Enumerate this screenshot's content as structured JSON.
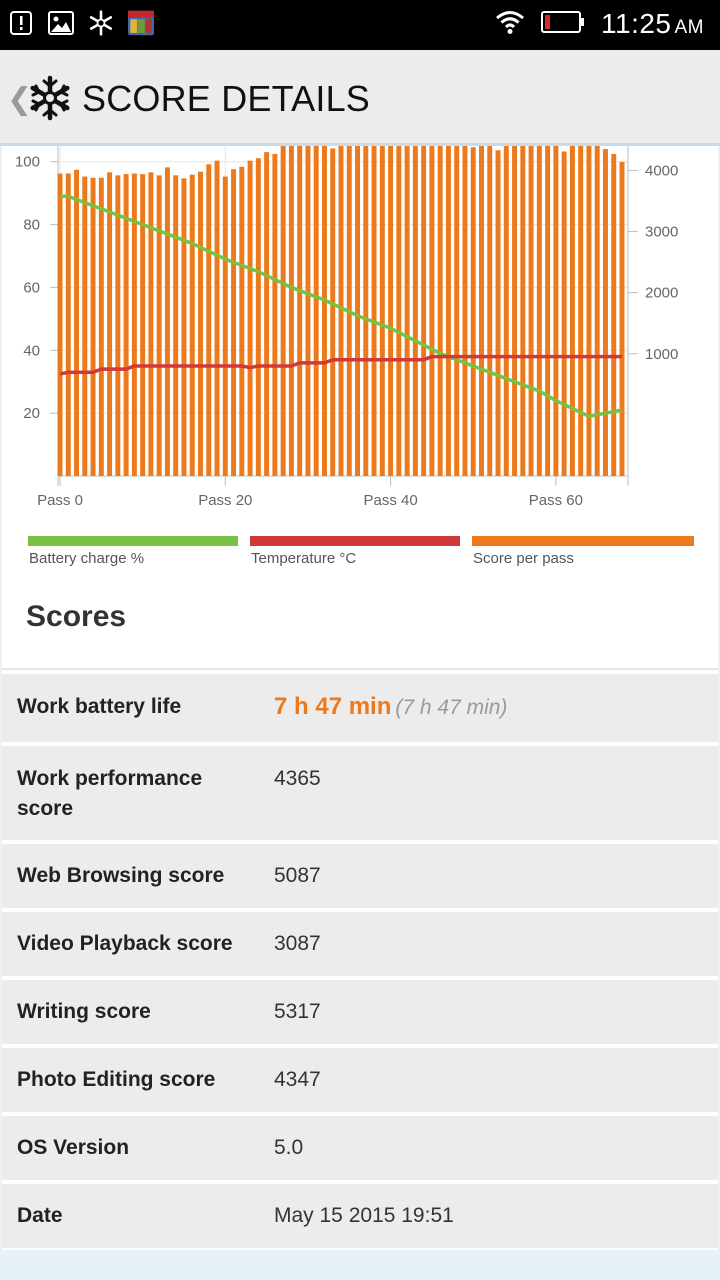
{
  "status_bar": {
    "time": "11:25",
    "ampm": "AM",
    "icons": [
      "alert-icon",
      "image-icon",
      "snowflake-icon",
      "marvel-app-icon",
      "wifi-icon",
      "battery-low-icon"
    ]
  },
  "header": {
    "back_glyph": "❮",
    "title": "SCORE DETAILS"
  },
  "legend": {
    "battery_label": "Battery charge %",
    "temperature_label": "Temperature °C",
    "score_label": "Score per pass",
    "battery_color": "#7ac143",
    "temperature_color": "#d0393a",
    "score_color": "#ec7a1c"
  },
  "chart_data": {
    "type": "bar",
    "x_tick_labels": [
      "Pass 0",
      "Pass 20",
      "Pass 40",
      "Pass 60"
    ],
    "x_ticks": [
      0,
      20,
      40,
      60
    ],
    "xlim": [
      0,
      68
    ],
    "left_axis": {
      "ylim": [
        0,
        105
      ],
      "ticks": [
        20,
        40,
        60,
        80,
        100
      ]
    },
    "right_axis": {
      "ylim": [
        -1000,
        4400
      ],
      "ticks": [
        1000,
        2000,
        3000,
        4000
      ]
    },
    "grid": true,
    "series": [
      {
        "name": "Score per pass",
        "type": "bar",
        "axis": "right",
        "color": "#ec7a1c",
        "values": [
          3950,
          3950,
          4010,
          3900,
          3880,
          3880,
          3970,
          3920,
          3940,
          3950,
          3940,
          3970,
          3920,
          4050,
          3920,
          3870,
          3930,
          3980,
          4100,
          4160,
          3900,
          4020,
          4060,
          4160,
          4200,
          4300,
          4270,
          4560,
          4430,
          4490,
          4460,
          4440,
          4420,
          4360,
          4440,
          4560,
          4560,
          4590,
          4540,
          4420,
          4460,
          4470,
          4450,
          4530,
          4420,
          4520,
          4510,
          4480,
          4480,
          4440,
          4380,
          4490,
          4480,
          4330,
          4440,
          4420,
          4500,
          4460,
          4600,
          4460,
          4470,
          4310,
          4530,
          4450,
          4450,
          4460,
          4350,
          4270,
          4140
        ]
      },
      {
        "name": "Battery charge %",
        "type": "line",
        "axis": "left",
        "color": "#7ac143",
        "x": [
          0,
          1,
          4,
          8,
          12,
          16,
          20,
          24,
          28,
          32,
          36,
          40,
          43,
          46,
          50,
          54,
          58,
          60,
          64,
          68
        ],
        "values": [
          89,
          89,
          86,
          82,
          78,
          74,
          69,
          65,
          60,
          56,
          51,
          47,
          43,
          39,
          35,
          31,
          27,
          24,
          19,
          21
        ]
      },
      {
        "name": "Temperature °C",
        "type": "line",
        "axis": "left",
        "color": "#d0393a",
        "x": [
          0,
          1,
          4,
          5,
          8,
          9,
          10,
          14,
          22,
          23,
          24,
          28,
          29,
          32,
          33,
          44,
          45,
          68
        ],
        "values": [
          32.5,
          33,
          33,
          34,
          34,
          35,
          35,
          35,
          35,
          34.5,
          35,
          35,
          36,
          36,
          37,
          37,
          38,
          38
        ]
      }
    ]
  },
  "scores": {
    "title": "Scores",
    "rows": [
      {
        "label": "Work battery life",
        "value": "7 h 47 min",
        "sub": "(7 h 47 min)"
      },
      {
        "label": "Work performance score",
        "value": "4365"
      },
      {
        "label": "Web Browsing score",
        "value": "5087"
      },
      {
        "label": "Video Playback score",
        "value": "3087"
      },
      {
        "label": "Writing score",
        "value": "5317"
      },
      {
        "label": "Photo Editing score",
        "value": "4347"
      },
      {
        "label": "OS Version",
        "value": "5.0"
      },
      {
        "label": "Date",
        "value": "May 15 2015 19:51"
      }
    ]
  }
}
